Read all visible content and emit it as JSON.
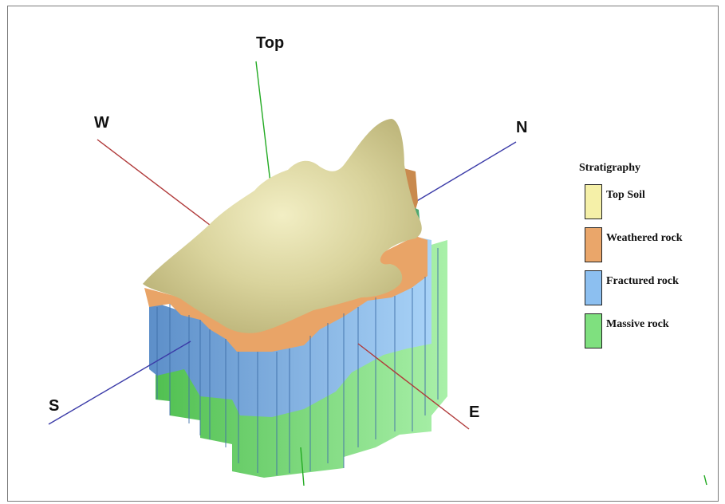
{
  "axes": {
    "top": "Top",
    "west": "W",
    "north": "N",
    "south": "S",
    "east": "E"
  },
  "colors": {
    "top_soil": "#f5f0a8",
    "weathered_rock": "#eaa66a",
    "fractured_rock": "#8cbff0",
    "massive_rock": "#7fe07f",
    "ns_axis": "#3b3ba8",
    "we_axis": "#b03a3a",
    "vertical_axis": "#22aa22"
  },
  "legend": {
    "title": "Stratigraphy",
    "items": [
      {
        "label": "Top Soil",
        "color": "#f5f0a8"
      },
      {
        "label": "Weathered rock",
        "color": "#eaa66a"
      },
      {
        "label": "Fractured rock",
        "color": "#8cbff0"
      },
      {
        "label": "Massive rock",
        "color": "#7fe07f"
      }
    ]
  }
}
